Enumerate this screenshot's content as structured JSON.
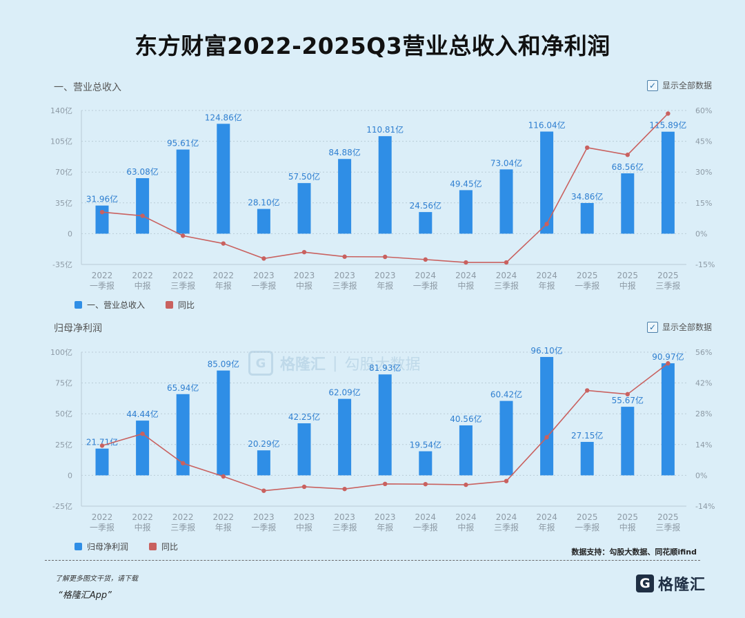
{
  "title": "东方财富2022-2025Q3营业总收入和净利润",
  "toggle_label": "显示全部数据",
  "colors": {
    "bar": "#2f8ee6",
    "line": "#c9615f",
    "bar_label": "#2f7fd0",
    "axis_text": "#8d9aa5",
    "grid": "#b9cbd6"
  },
  "chart_data": [
    {
      "type": "bar+line",
      "title": "一、营业总收入",
      "categories": [
        [
          "2022",
          "一季报"
        ],
        [
          "2022",
          "中报"
        ],
        [
          "2022",
          "三季报"
        ],
        [
          "2022",
          "年报"
        ],
        [
          "2023",
          "一季报"
        ],
        [
          "2023",
          "中报"
        ],
        [
          "2023",
          "三季报"
        ],
        [
          "2023",
          "年报"
        ],
        [
          "2024",
          "一季报"
        ],
        [
          "2024",
          "中报"
        ],
        [
          "2024",
          "三季报"
        ],
        [
          "2024",
          "年报"
        ],
        [
          "2025",
          "一季报"
        ],
        [
          "2025",
          "中报"
        ],
        [
          "2025",
          "三季报"
        ]
      ],
      "series": [
        {
          "name": "一、营业总收入",
          "type": "bar",
          "axis": "left",
          "values": [
            31.96,
            63.08,
            95.61,
            124.86,
            28.1,
            57.5,
            84.88,
            110.81,
            24.56,
            49.45,
            73.04,
            116.04,
            34.86,
            68.56,
            115.89
          ],
          "labels": [
            "31.96亿",
            "63.08亿",
            "95.61亿",
            "124.86亿",
            "28.10亿",
            "57.50亿",
            "84.88亿",
            "110.81亿",
            "24.56亿",
            "49.45亿",
            "73.04亿",
            "116.04亿",
            "34.86亿",
            "68.56亿",
            "115.89亿"
          ]
        },
        {
          "name": "同比",
          "type": "line",
          "axis": "right",
          "values": [
            10.5,
            8.7,
            -1.0,
            -4.8,
            -12.1,
            -9.0,
            -11.2,
            -11.3,
            -12.6,
            -14.0,
            -14.0,
            4.7,
            41.9,
            38.4,
            58.5
          ]
        }
      ],
      "left_axis": {
        "ticks": [
          140,
          105,
          70,
          35,
          0,
          -35
        ],
        "tick_labels": [
          "140亿",
          "105亿",
          "70亿",
          "35亿",
          "0",
          "-35亿"
        ],
        "range": [
          -35,
          140
        ]
      },
      "right_axis": {
        "ticks": [
          60,
          45,
          30,
          15,
          0,
          -15
        ],
        "tick_labels": [
          "60%",
          "45%",
          "30%",
          "15%",
          "0%",
          "-15%"
        ],
        "range": [
          -15,
          60
        ]
      },
      "legend": [
        "一、营业总收入",
        "同比"
      ]
    },
    {
      "type": "bar+line",
      "title": "归母净利润",
      "categories": [
        [
          "2022",
          "一季报"
        ],
        [
          "2022",
          "中报"
        ],
        [
          "2022",
          "三季报"
        ],
        [
          "2022",
          "年报"
        ],
        [
          "2023",
          "一季报"
        ],
        [
          "2023",
          "中报"
        ],
        [
          "2023",
          "三季报"
        ],
        [
          "2023",
          "年报"
        ],
        [
          "2024",
          "一季报"
        ],
        [
          "2024",
          "中报"
        ],
        [
          "2024",
          "三季报"
        ],
        [
          "2024",
          "年报"
        ],
        [
          "2025",
          "一季报"
        ],
        [
          "2025",
          "中报"
        ],
        [
          "2025",
          "三季报"
        ]
      ],
      "series": [
        {
          "name": "归母净利润",
          "type": "bar",
          "axis": "left",
          "values": [
            21.71,
            44.44,
            65.94,
            85.09,
            20.29,
            42.25,
            62.09,
            81.93,
            19.54,
            40.56,
            60.42,
            96.1,
            27.15,
            55.67,
            90.97
          ],
          "labels": [
            "21.71亿",
            "44.44亿",
            "65.94亿",
            "85.09亿",
            "20.29亿",
            "42.25亿",
            "62.09亿",
            "81.93亿",
            "19.54亿",
            "40.56亿",
            "60.42亿",
            "96.10亿",
            "27.15亿",
            "55.67亿",
            "90.97亿"
          ]
        },
        {
          "name": "同比",
          "type": "line",
          "axis": "right",
          "values": [
            13.5,
            18.9,
            5.5,
            -0.5,
            -7.0,
            -5.2,
            -6.2,
            -3.9,
            -4.0,
            -4.3,
            -2.6,
            17.3,
            38.6,
            36.9,
            50.9
          ]
        }
      ],
      "left_axis": {
        "ticks": [
          100,
          75,
          50,
          25,
          0,
          -25
        ],
        "tick_labels": [
          "100亿",
          "75亿",
          "50亿",
          "25亿",
          "0",
          "-25亿"
        ],
        "range": [
          -25,
          100
        ]
      },
      "right_axis": {
        "ticks": [
          56,
          42,
          28,
          14,
          0,
          -14
        ],
        "tick_labels": [
          "56%",
          "42%",
          "28%",
          "14%",
          "0%",
          "-14%"
        ],
        "range": [
          -14,
          56
        ]
      },
      "legend": [
        "归母净利润",
        "同比"
      ]
    }
  ],
  "source_text": "数据支持：勾股大数据、同花顺ifind",
  "promo_line1": "了解更多图文干货，请下载",
  "promo_line2": "“格隆汇App”",
  "logo_text": "格隆汇",
  "logo_mark": "G",
  "watermark": {
    "name": "格隆汇",
    "divider": "|",
    "sub": "勾股大数据"
  }
}
